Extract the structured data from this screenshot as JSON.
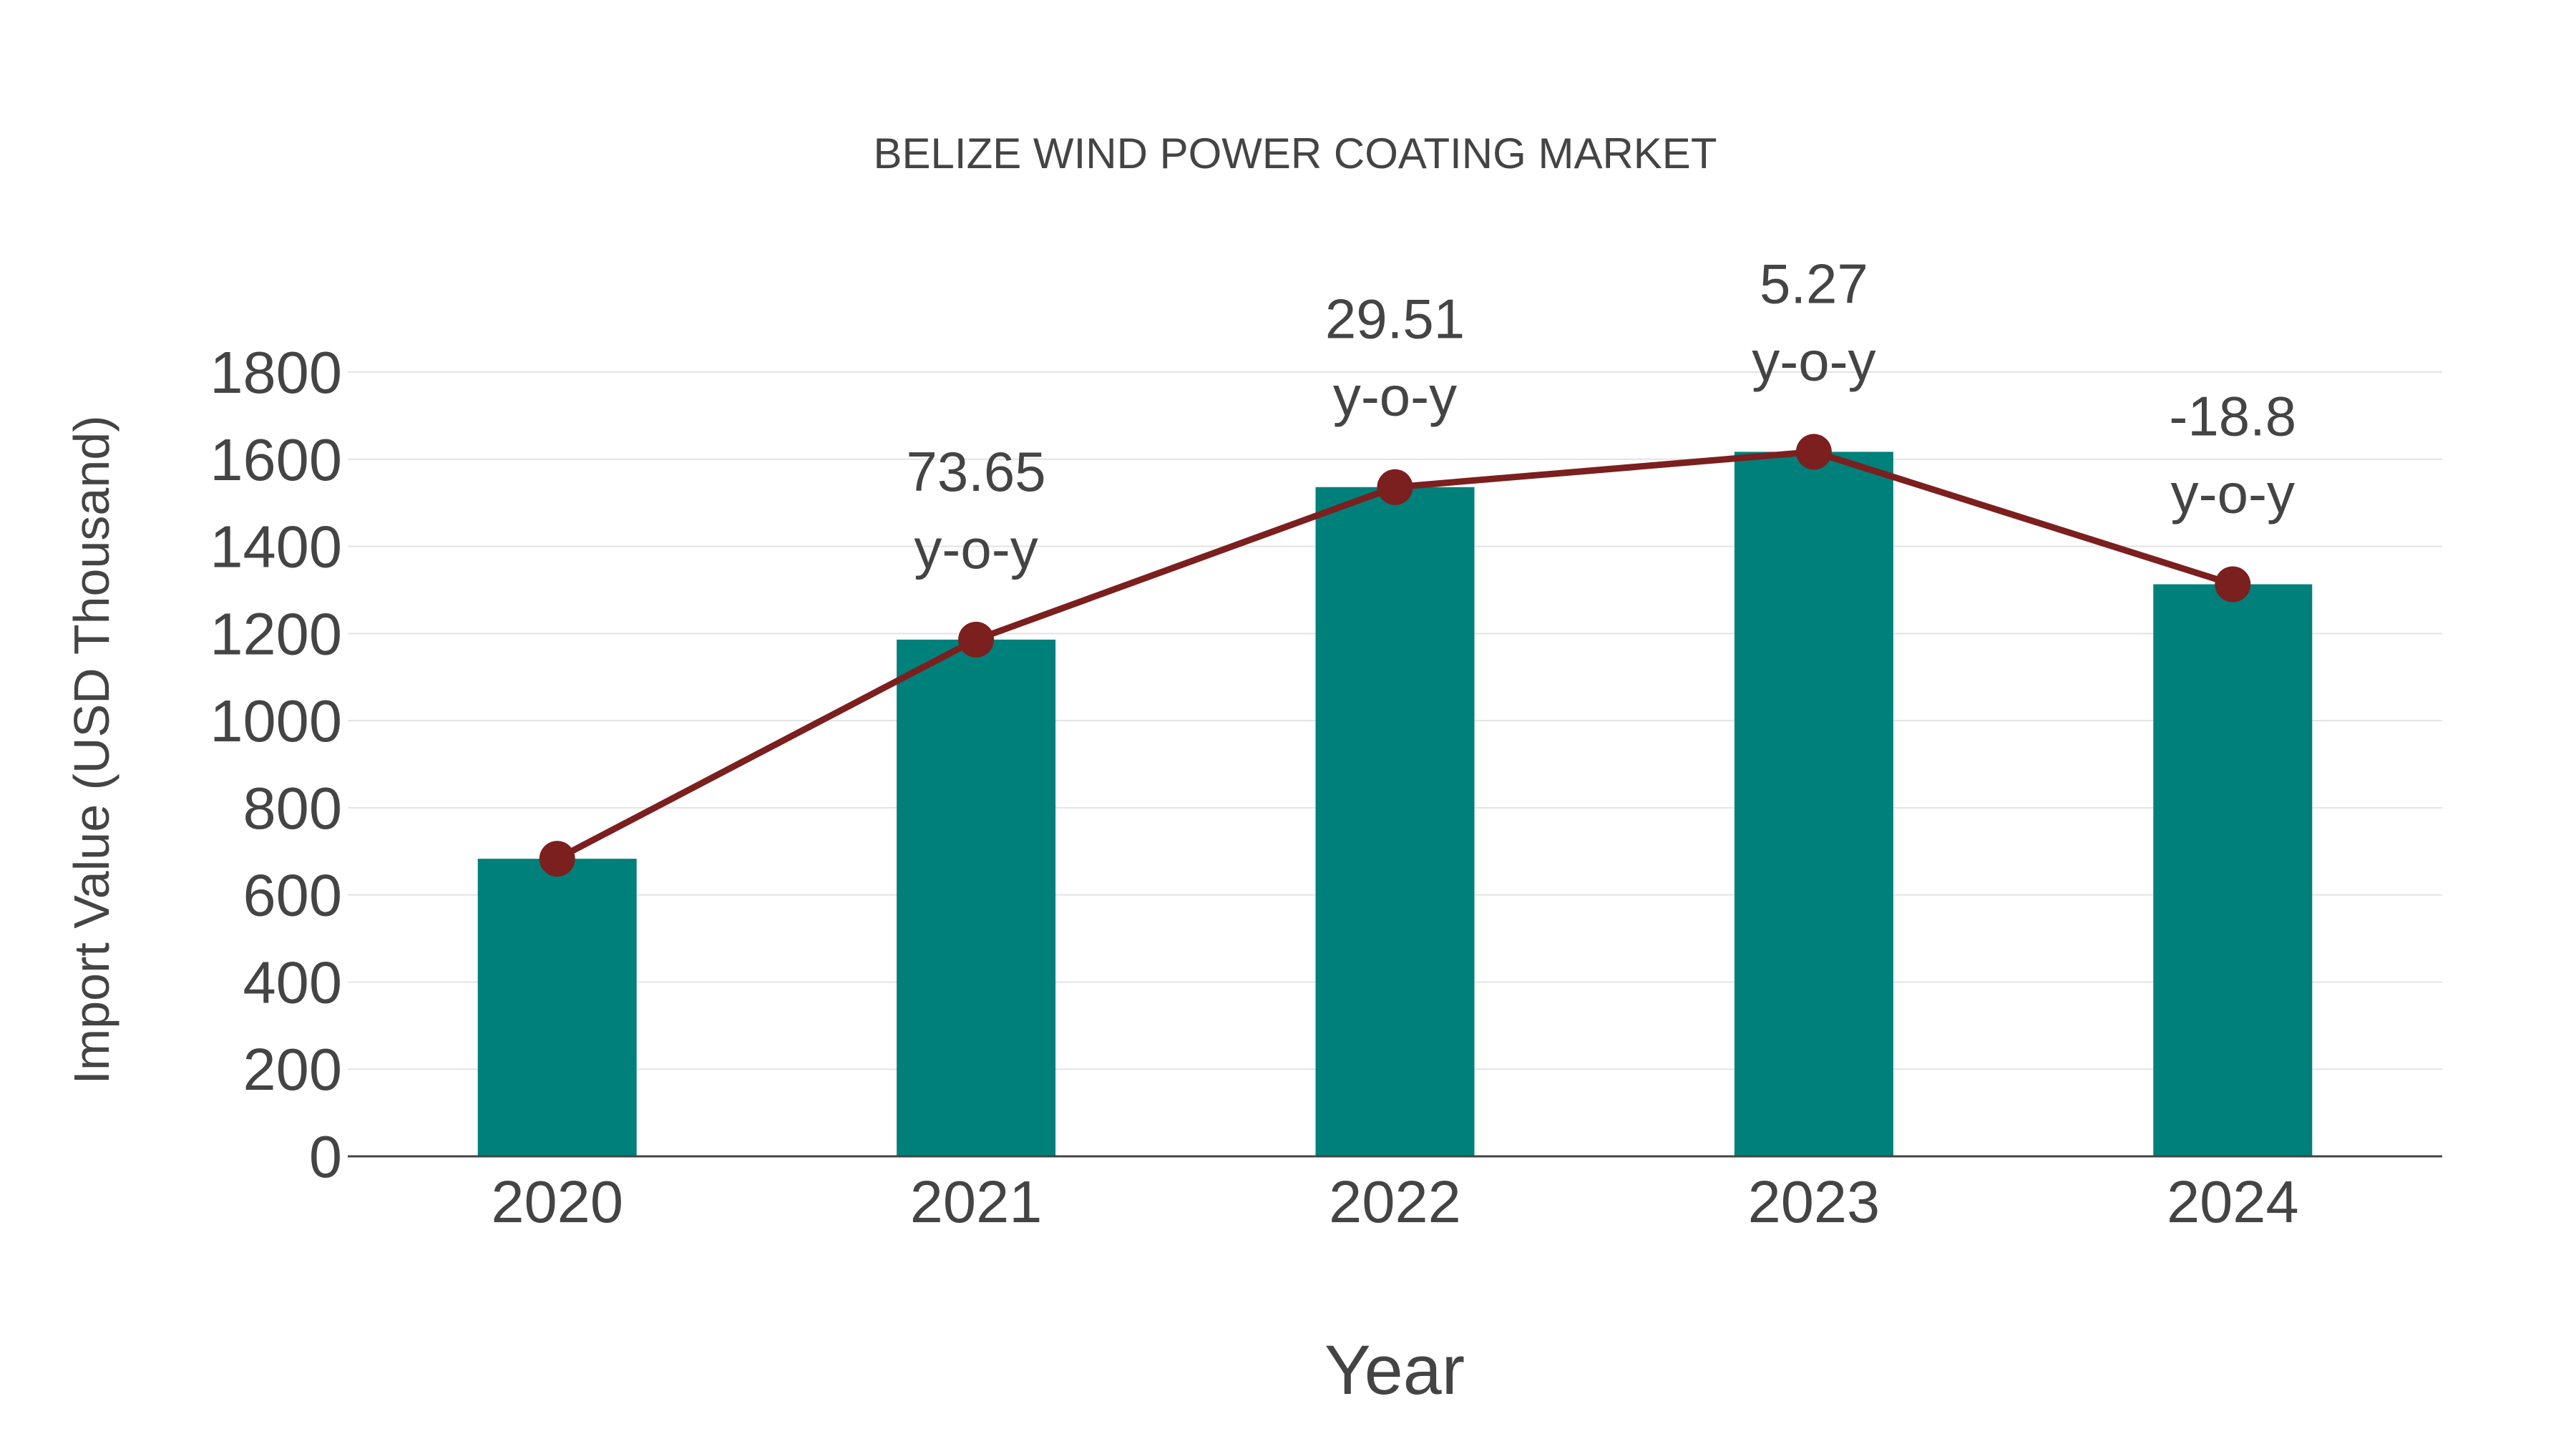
{
  "chart_data": {
    "type": "bar",
    "title": "BELIZE WIND POWER COATING MARKET",
    "xlabel": "Year",
    "ylabel": "Import Value (USD Thousand)",
    "ylim": [
      0,
      1800
    ],
    "yticks": [
      0,
      200,
      400,
      600,
      800,
      1000,
      1200,
      1400,
      1600,
      1800
    ],
    "grid": true,
    "categories": [
      "2020",
      "2021",
      "2022",
      "2023",
      "2024"
    ],
    "series": [
      {
        "name": "Import Value",
        "type": "bar",
        "values": [
          683,
          1186,
          1536,
          1617,
          1313
        ],
        "color": "#00807a"
      },
      {
        "name": "Trend",
        "type": "line",
        "values": [
          683,
          1186,
          1536,
          1617,
          1313
        ],
        "color": "#7b1f1f"
      }
    ],
    "annotations": [
      {
        "category": "2021",
        "value": "73.65",
        "suffix": "y-o-y"
      },
      {
        "category": "2022",
        "value": "29.51",
        "suffix": "y-o-y"
      },
      {
        "category": "2023",
        "value": "5.27",
        "suffix": "y-o-y"
      },
      {
        "category": "2024",
        "value": "-18.8",
        "suffix": "y-o-y"
      }
    ]
  }
}
